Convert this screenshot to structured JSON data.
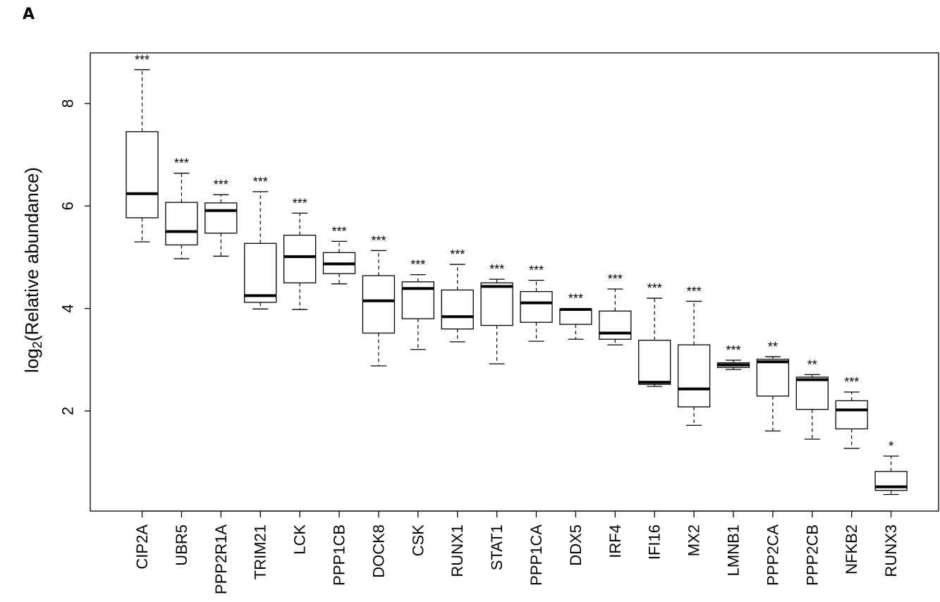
{
  "panel_label": "A",
  "chart_data": {
    "type": "box",
    "title": "",
    "xlabel": "",
    "ylabel_main": "log",
    "ylabel_sub": "2",
    "ylabel_rest": "(Relative abundance)",
    "ylim": [
      0,
      8.9
    ],
    "yticks": [
      2,
      4,
      6,
      8
    ],
    "ytick_labels": [
      "2",
      "4",
      "6",
      "8"
    ],
    "grid": false,
    "legend": "none",
    "categories": [
      "CIP2A",
      "UBR5",
      "PPP2R1A",
      "TRIM21",
      "LCK",
      "PPP1CB",
      "DOCK8",
      "CSK",
      "RUNX1",
      "STAT1",
      "PPP1CA",
      "DDX5",
      "IRF4",
      "IFI16",
      "MX2",
      "LMNB1",
      "PPP2CA",
      "PPP2CB",
      "NFKB2",
      "RUNX3"
    ],
    "boxes": [
      {
        "min": 5.3,
        "q1": 5.77,
        "median": 6.24,
        "q3": 7.45,
        "max": 8.66,
        "sig": "***"
      },
      {
        "min": 4.97,
        "q1": 5.24,
        "median": 5.5,
        "q3": 6.07,
        "max": 6.64,
        "sig": "***"
      },
      {
        "min": 5.02,
        "q1": 5.47,
        "median": 5.91,
        "q3": 6.06,
        "max": 6.22,
        "sig": "***"
      },
      {
        "min": 3.99,
        "q1": 4.12,
        "median": 4.25,
        "q3": 5.27,
        "max": 6.28,
        "sig": "***"
      },
      {
        "min": 3.98,
        "q1": 4.5,
        "median": 5.01,
        "q3": 5.43,
        "max": 5.86,
        "sig": "***"
      },
      {
        "min": 4.48,
        "q1": 4.68,
        "median": 4.87,
        "q3": 5.09,
        "max": 5.31,
        "sig": "***"
      },
      {
        "min": 2.88,
        "q1": 3.52,
        "median": 4.15,
        "q3": 4.64,
        "max": 5.13,
        "sig": "***"
      },
      {
        "min": 3.2,
        "q1": 3.8,
        "median": 4.39,
        "q3": 4.52,
        "max": 4.66,
        "sig": "***"
      },
      {
        "min": 3.35,
        "q1": 3.6,
        "median": 3.84,
        "q3": 4.36,
        "max": 4.86,
        "sig": "***"
      },
      {
        "min": 2.92,
        "q1": 3.67,
        "median": 4.43,
        "q3": 4.5,
        "max": 4.57,
        "sig": "***"
      },
      {
        "min": 3.36,
        "q1": 3.73,
        "median": 4.11,
        "q3": 4.33,
        "max": 4.55,
        "sig": "***"
      },
      {
        "min": 3.4,
        "q1": 3.69,
        "median": 3.98,
        "q3": 3.99,
        "max": 4.0,
        "sig": "***"
      },
      {
        "min": 3.29,
        "q1": 3.4,
        "median": 3.52,
        "q3": 3.95,
        "max": 4.38,
        "sig": "***"
      },
      {
        "min": 2.48,
        "q1": 2.52,
        "median": 2.56,
        "q3": 3.38,
        "max": 4.2,
        "sig": "***"
      },
      {
        "min": 1.72,
        "q1": 2.08,
        "median": 2.43,
        "q3": 3.29,
        "max": 4.14,
        "sig": "***"
      },
      {
        "min": 2.81,
        "q1": 2.85,
        "median": 2.9,
        "q3": 2.94,
        "max": 2.99,
        "sig": "***"
      },
      {
        "min": 1.61,
        "q1": 2.29,
        "median": 2.96,
        "q3": 3.01,
        "max": 3.06,
        "sig": "**"
      },
      {
        "min": 1.45,
        "q1": 2.03,
        "median": 2.61,
        "q3": 2.66,
        "max": 2.71,
        "sig": "**"
      },
      {
        "min": 1.27,
        "q1": 1.65,
        "median": 2.02,
        "q3": 2.2,
        "max": 2.37,
        "sig": "***"
      },
      {
        "min": 0.37,
        "q1": 0.45,
        "median": 0.52,
        "q3": 0.82,
        "max": 1.12,
        "sig": "*"
      }
    ]
  }
}
